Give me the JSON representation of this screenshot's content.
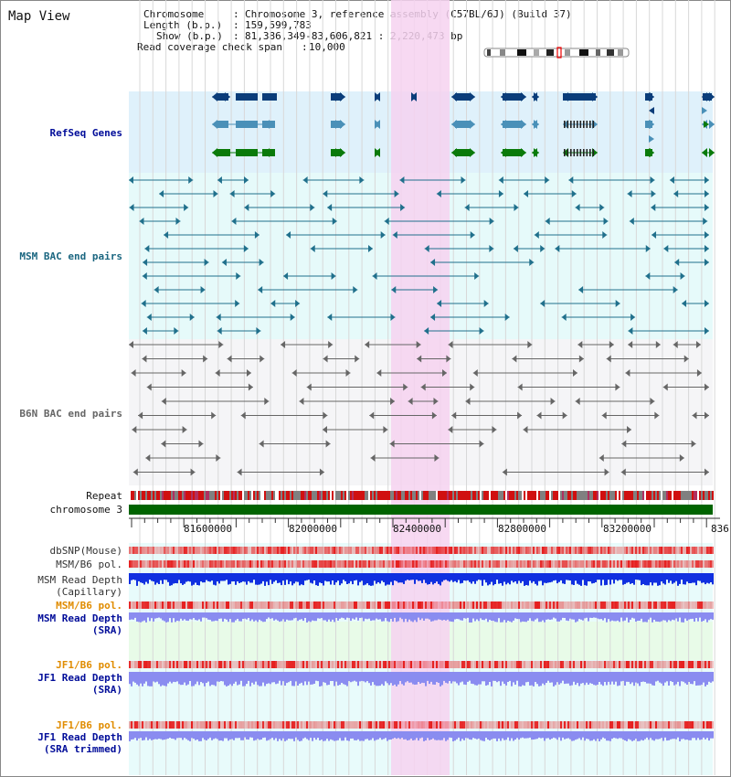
{
  "page": {
    "title": "Map View"
  },
  "header": {
    "rows": [
      {
        "key": "Chromosome",
        "value": "Chromosome 3, reference assembly (C57BL/6J) (Build 37)"
      },
      {
        "key": "Length (b.p.)",
        "value": "159,599,783"
      },
      {
        "key": "Show (b.p.)",
        "value": "81,386,349-83,606,821 : 2,220,473 bp"
      },
      {
        "key": "Read coverage check span",
        "value": "10,000"
      }
    ]
  },
  "tracks": {
    "refseq": "RefSeq Genes",
    "msm_bac": "MSM BAC end pairs",
    "b6n_bac": "B6N BAC end pairs",
    "repeat": "Repeat",
    "chromosome": "chromosome 3",
    "dbsnp": "dbSNP(Mouse)",
    "msm_b6_pol_1": "MSM/B6 pol.",
    "msm_depth_cap_1": "MSM Read Depth",
    "msm_depth_cap_2": "(Capillary)",
    "msm_b6_pol_2": "MSM/B6 pol.",
    "msm_depth_sra_1": "MSM Read Depth",
    "msm_depth_sra_2": "(SRA)",
    "jf1_b6_pol_1": "JF1/B6 pol.",
    "jf1_depth_sra_1": "JF1 Read Depth",
    "jf1_depth_sra_2": "(SRA)",
    "jf1_b6_pol_2": "JF1/B6 pol.",
    "jf1_depth_trim_1": "JF1 Read Depth",
    "jf1_depth_trim_2": "(SRA trimmed)"
  },
  "ruler": {
    "ticks": [
      "81600000",
      "82000000",
      "82400000",
      "82800000",
      "83200000",
      "836"
    ]
  },
  "colors": {
    "refseq_bg": "#dff1fb",
    "bac_bg": "#e6fafa",
    "highlight": "#f6d2f0",
    "gene_dark": "#0a3d7a",
    "gene_mid": "#4a90b8",
    "gene_green": "#0a7a0a",
    "bac_teal": "#20708c",
    "bac_gray": "#666666",
    "chrom_green": "#006400",
    "depth_dark": "#1030e0",
    "depth_light": "#8a8cf0",
    "label_blue": "#000c99",
    "label_orange": "#e08c00",
    "label_teal": "#1a6680"
  }
}
